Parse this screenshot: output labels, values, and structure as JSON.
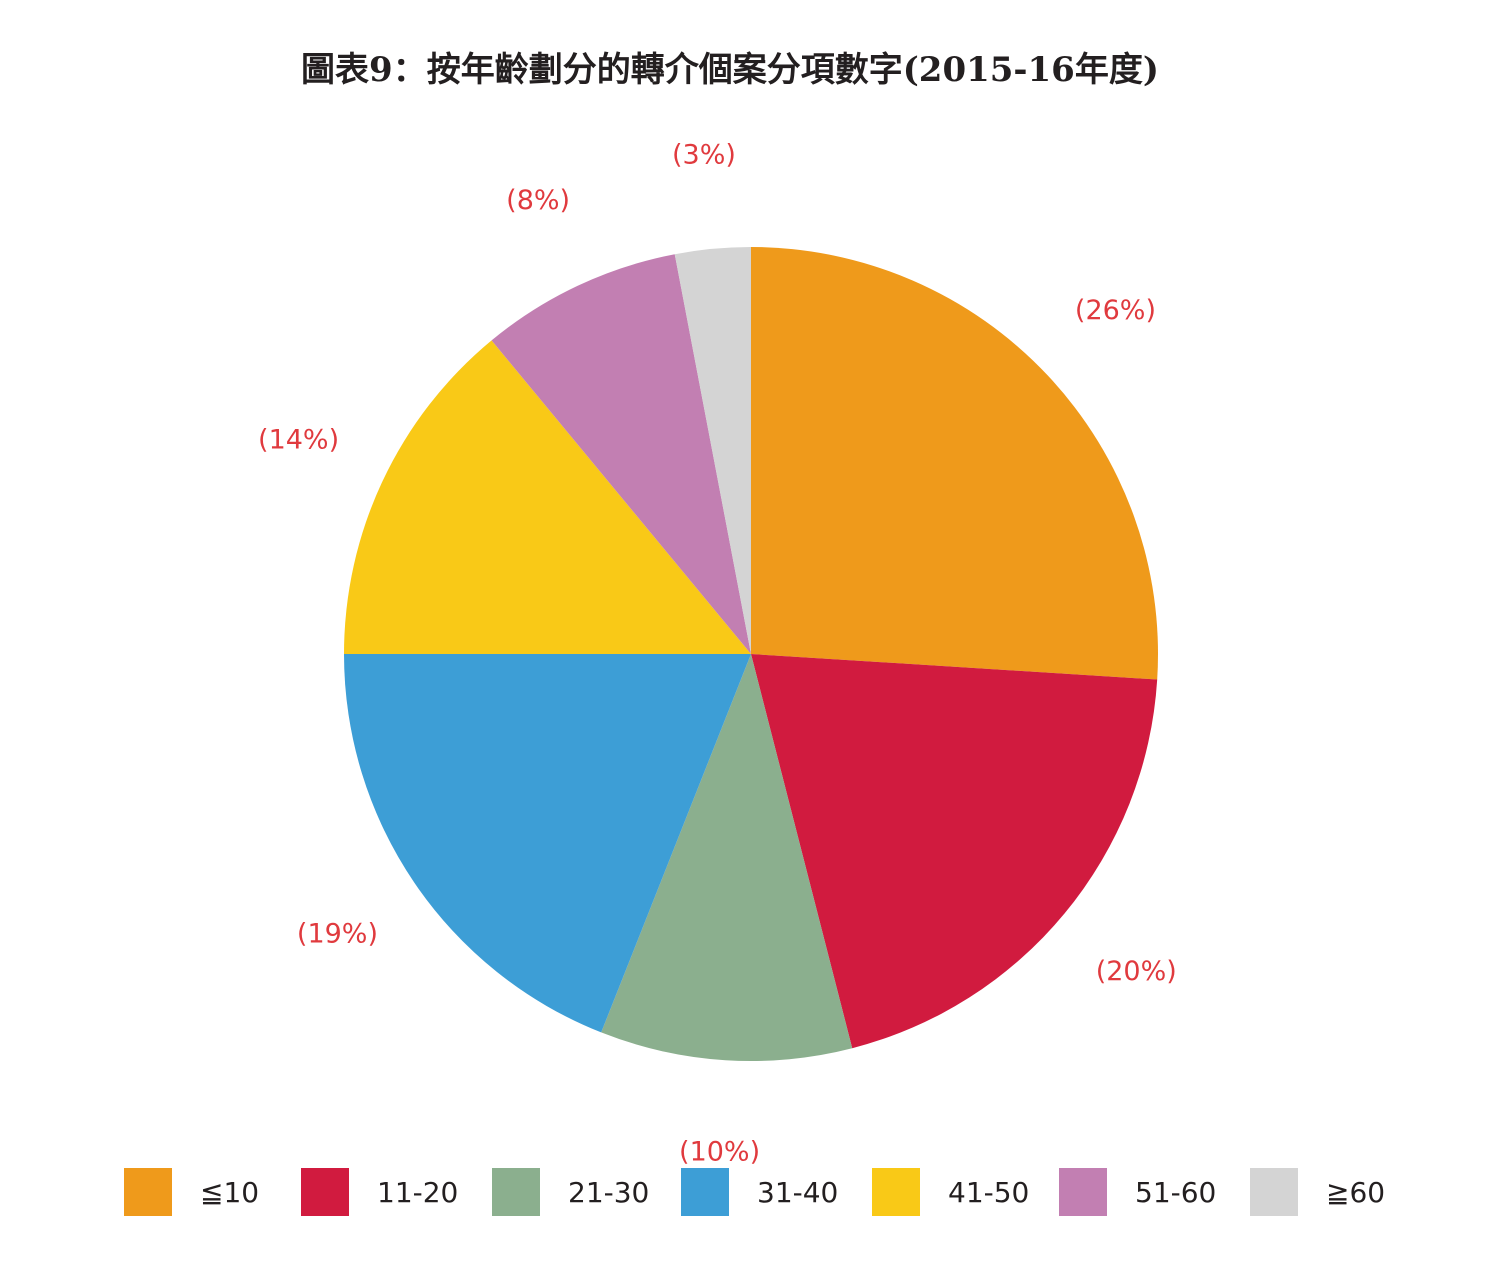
{
  "chart_data": {
    "type": "pie",
    "title": "圖表9：按年齡劃分的轉介個案分項數字(2015-16年度)",
    "slices": [
      {
        "category": "≦10",
        "value": 26,
        "label": "(26%)",
        "color": "#ef9a1b"
      },
      {
        "category": "11-20",
        "value": 20,
        "label": "(20%)",
        "color": "#d11b3f"
      },
      {
        "category": "21-30",
        "value": 10,
        "label": "(10%)",
        "color": "#8baf8e"
      },
      {
        "category": "31-40",
        "value": 19,
        "label": "(19%)",
        "color": "#3d9ed6"
      },
      {
        "category": "41-50",
        "value": 14,
        "label": "(14%)",
        "color": "#f9c917"
      },
      {
        "category": "51-60",
        "value": 8,
        "label": "(8%)",
        "color": "#c27fb2"
      },
      {
        "category": "≧60",
        "value": 3,
        "label": "(3%)",
        "color": "#d4d4d4"
      }
    ],
    "legend_position": "bottom",
    "start_angle": "12 o'clock",
    "direction": "clockwise"
  }
}
